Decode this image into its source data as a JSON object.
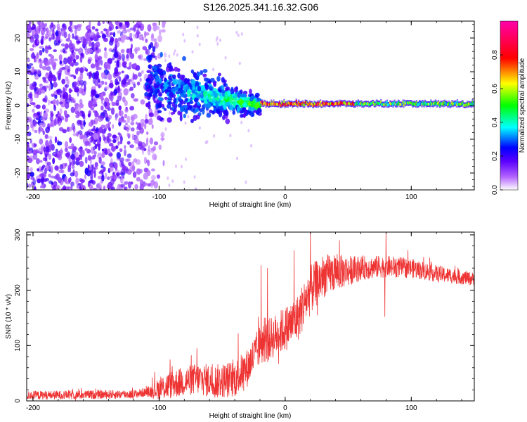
{
  "title": "S126.2025.341.16.32.G06",
  "chart_data": [
    {
      "type": "heatmap",
      "xlabel": "Height of straight line (km)",
      "ylabel": "Frequency (Hz)",
      "xlim": [
        -205,
        150
      ],
      "ylim": [
        -25,
        25
      ],
      "xticks": [
        -200,
        -100,
        0,
        100
      ],
      "yticks": [
        -20,
        -10,
        0,
        10,
        20
      ],
      "colorbar": {
        "label": "Normalized spectral amplitude",
        "range": [
          0,
          1
        ],
        "ticks": [
          0.0,
          0.2,
          0.4,
          0.6,
          0.8
        ],
        "colors": [
          "#ffffff",
          "#6a00ff",
          "#0000ff",
          "#00ffff",
          "#00ff00",
          "#ffff00",
          "#ff0000",
          "#ff00aa"
        ]
      },
      "features": [
        {
          "name": "scattered noise",
          "x_range": [
            -205,
            -95
          ],
          "freq_range": [
            -25,
            25
          ],
          "amplitude": 0.1
        },
        {
          "name": "emerging signal",
          "x_range": [
            -110,
            -20
          ],
          "freq_start": 6,
          "freq_end": 0,
          "amplitude": 0.45
        },
        {
          "name": "stable signal line",
          "x_range": [
            -20,
            150
          ],
          "freq": 0.5,
          "amplitude": 0.9
        }
      ]
    },
    {
      "type": "line",
      "xlabel": "Height of straight line (km)",
      "ylabel": "SNR (10 * v/v)",
      "xlim": [
        -205,
        150
      ],
      "ylim": [
        0,
        305
      ],
      "xticks": [
        -200,
        -100,
        0,
        100
      ],
      "yticks": [
        0,
        100,
        200,
        300
      ],
      "line_color": "#ee3333",
      "trend": {
        "x": [
          -205,
          -120,
          -105,
          -90,
          -70,
          -55,
          -40,
          -30,
          -25,
          -20,
          -10,
          0,
          10,
          20,
          30,
          40,
          50,
          60,
          80,
          100,
          120,
          150
        ],
        "y": [
          10,
          12,
          18,
          30,
          40,
          35,
          40,
          60,
          80,
          100,
          115,
          130,
          150,
          200,
          225,
          232,
          235,
          240,
          243,
          240,
          230,
          220
        ]
      },
      "noise_amplitude": [
        {
          "x": -205,
          "amp": 8
        },
        {
          "x": -110,
          "amp": 8
        },
        {
          "x": -95,
          "amp": 25
        },
        {
          "x": -30,
          "amp": 35
        },
        {
          "x": 20,
          "amp": 45
        },
        {
          "x": 60,
          "amp": 22
        },
        {
          "x": 150,
          "amp": 12
        }
      ],
      "spikes": [
        {
          "x": -70,
          "y": 95
        },
        {
          "x": -19,
          "y": 245
        },
        {
          "x": -14,
          "y": 240
        },
        {
          "x": 7,
          "y": 272
        },
        {
          "x": 20,
          "y": 305
        },
        {
          "x": 43,
          "y": 290
        },
        {
          "x": 80,
          "y": 305
        },
        {
          "x": 79,
          "y": 152
        }
      ]
    }
  ]
}
